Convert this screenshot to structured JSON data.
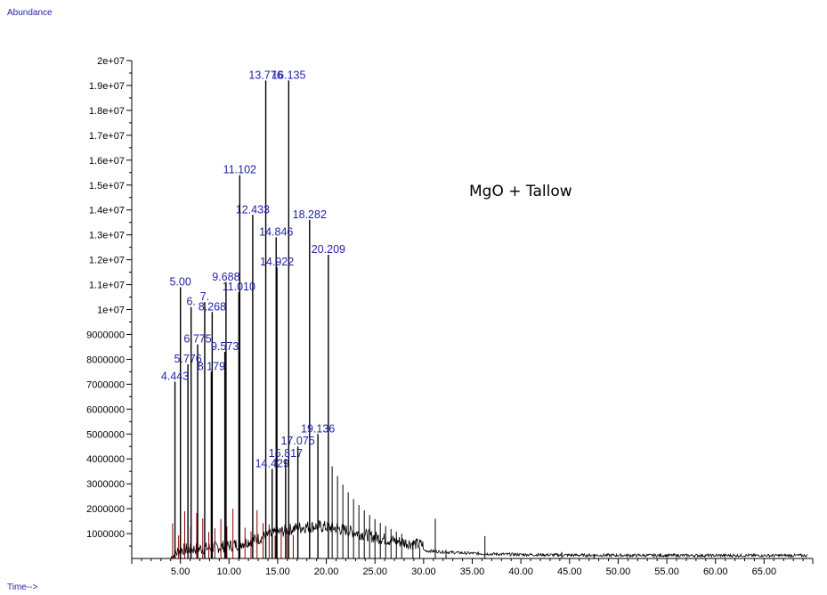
{
  "chart_data": {
    "type": "line",
    "title": "",
    "annotation": "MgO + Tallow",
    "ylabel": "Abundance",
    "xlabel": "Time-->",
    "xlim": [
      0,
      70
    ],
    "ylim": [
      0,
      20000000
    ],
    "y_ticks": [
      {
        "v": 20000000,
        "label": "2e+07"
      },
      {
        "v": 19000000,
        "label": "1.9e+07"
      },
      {
        "v": 18000000,
        "label": "1.8e+07"
      },
      {
        "v": 17000000,
        "label": "1.7e+07"
      },
      {
        "v": 16000000,
        "label": "1.6e+07"
      },
      {
        "v": 15000000,
        "label": "1.5e+07"
      },
      {
        "v": 14000000,
        "label": "1.4e+07"
      },
      {
        "v": 13000000,
        "label": "1.3e+07"
      },
      {
        "v": 12000000,
        "label": "1.2e+07"
      },
      {
        "v": 11000000,
        "label": "1.1e+07"
      },
      {
        "v": 10000000,
        "label": "1e+07"
      },
      {
        "v": 9000000,
        "label": "9000000"
      },
      {
        "v": 8000000,
        "label": "8000000"
      },
      {
        "v": 7000000,
        "label": "7000000"
      },
      {
        "v": 6000000,
        "label": "6000000"
      },
      {
        "v": 5000000,
        "label": "5000000"
      },
      {
        "v": 4000000,
        "label": "4000000"
      },
      {
        "v": 3000000,
        "label": "3000000"
      },
      {
        "v": 2000000,
        "label": "2000000"
      },
      {
        "v": 1000000,
        "label": "1000000"
      }
    ],
    "x_ticks": [
      "5.00",
      "10.00",
      "15.00",
      "20.00",
      "25.00",
      "30.00",
      "35.00",
      "40.00",
      "45.00",
      "50.00",
      "55.00",
      "60.00",
      "65.00"
    ],
    "peaks": [
      {
        "t": 4.443,
        "y": 7100000,
        "label": "4.443"
      },
      {
        "t": 5.004,
        "y": 10900000,
        "label": "5.00"
      },
      {
        "t": 5.776,
        "y": 7800000,
        "label": "5.776"
      },
      {
        "t": 6.1,
        "y": 10100000,
        "label": "6."
      },
      {
        "t": 6.775,
        "y": 8600000,
        "label": "6.775"
      },
      {
        "t": 7.5,
        "y": 10300000,
        "label": "7."
      },
      {
        "t": 8.179,
        "y": 7500000,
        "label": "8.179"
      },
      {
        "t": 8.268,
        "y": 9900000,
        "label": "8.268"
      },
      {
        "t": 9.573,
        "y": 8300000,
        "label": "9.573"
      },
      {
        "t": 9.688,
        "y": 11100000,
        "label": "9.688"
      },
      {
        "t": 11.01,
        "y": 10700000,
        "label": "11.010"
      },
      {
        "t": 11.102,
        "y": 15400000,
        "label": "11.102"
      },
      {
        "t": 12.433,
        "y": 13800000,
        "label": "12.433"
      },
      {
        "t": 13.776,
        "y": 19200000,
        "label": "13.776"
      },
      {
        "t": 14.429,
        "y": 3600000,
        "label": "14.429"
      },
      {
        "t": 14.846,
        "y": 12900000,
        "label": "14.846"
      },
      {
        "t": 14.922,
        "y": 11700000,
        "label": "14.922"
      },
      {
        "t": 15.817,
        "y": 4000000,
        "label": "15.817"
      },
      {
        "t": 16.135,
        "y": 19200000,
        "label": "16.135"
      },
      {
        "t": 17.075,
        "y": 4500000,
        "label": "17.075"
      },
      {
        "t": 18.282,
        "y": 13600000,
        "label": "18.282"
      },
      {
        "t": 19.136,
        "y": 5000000,
        "label": "19.136"
      },
      {
        "t": 20.209,
        "y": 12200000,
        "label": "20.209"
      }
    ]
  }
}
